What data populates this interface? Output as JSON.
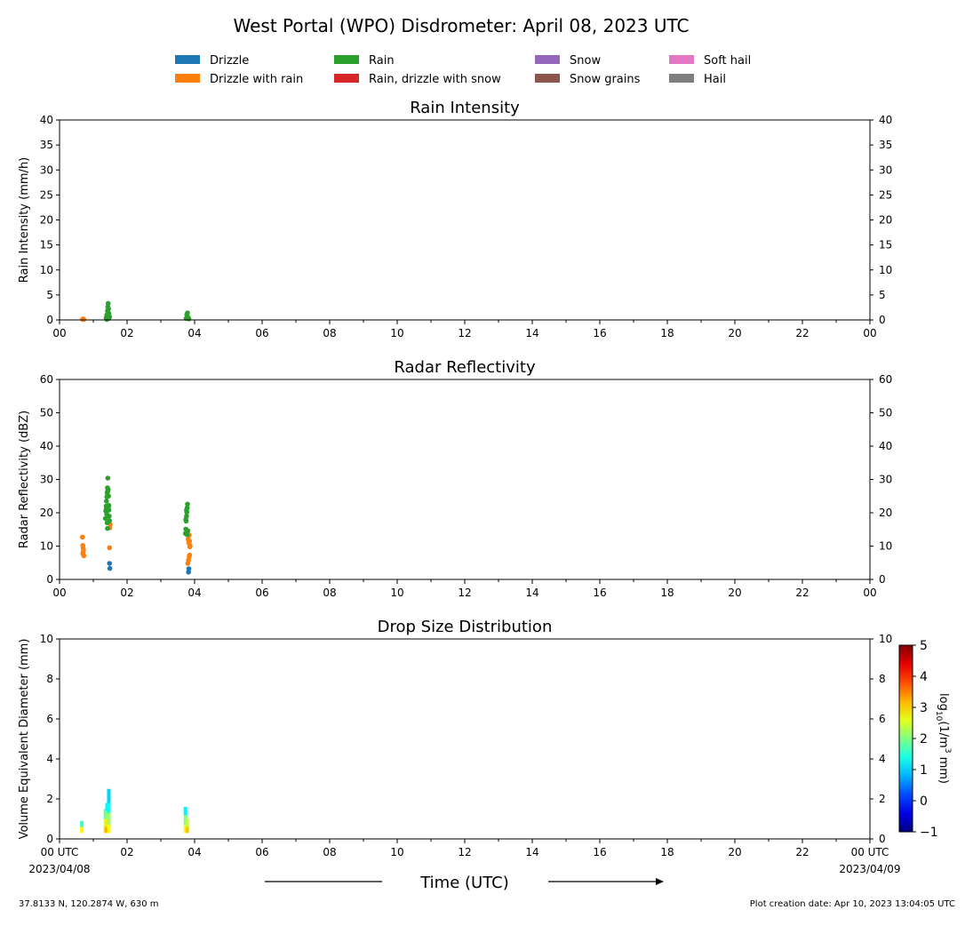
{
  "figure": {
    "title": "West Portal (WPO) Disdrometer: April 08, 2023 UTC",
    "xlabel": "Time (UTC)",
    "location": "37.8133 N, 120.2874 W, 630 m",
    "creation_date": "Plot creation date: Apr 10, 2023 13:04:05 UTC"
  },
  "legend": {
    "items": [
      {
        "label": "Drizzle",
        "color": "#1f77b4"
      },
      {
        "label": "Drizzle with rain",
        "color": "#ff7f0e"
      },
      {
        "label": "Rain",
        "color": "#2ca02c"
      },
      {
        "label": "Rain, drizzle with snow",
        "color": "#d62728"
      },
      {
        "label": "Snow",
        "color": "#9467bd"
      },
      {
        "label": "Snow grains",
        "color": "#8c564b"
      },
      {
        "label": "Soft hail",
        "color": "#e377c2"
      },
      {
        "label": "Hail",
        "color": "#7f7f7f"
      }
    ]
  },
  "colorbar": {
    "label_prefix": "log",
    "label_sub": "10",
    "label_mid": "(1/m",
    "label_sup": "3",
    "label_suffix": " mm)",
    "ticks": [
      "5",
      "4",
      "3",
      "2",
      "1",
      "0",
      "−1"
    ],
    "range": [
      -1,
      5
    ],
    "colormap": "jet"
  },
  "chart_data": [
    {
      "type": "scatter",
      "title": "Rain Intensity",
      "ylabel": "Rain Intensity (mm/h)",
      "xlim": [
        0,
        24
      ],
      "ylim": [
        0,
        40
      ],
      "yticks": [
        "0",
        "5",
        "10",
        "15",
        "20",
        "25",
        "30",
        "35",
        "40"
      ],
      "xticks": [
        "00",
        "02",
        "04",
        "06",
        "08",
        "10",
        "12",
        "14",
        "16",
        "18",
        "20",
        "22",
        "00"
      ],
      "grid": false,
      "series": [
        {
          "name": "Drizzle with rain",
          "color": "#ff7f0e",
          "x": [
            0.68,
            0.7,
            0.72
          ],
          "y": [
            0.1,
            0.2,
            0.1
          ]
        },
        {
          "name": "Rain",
          "color": "#2ca02c",
          "x": [
            1.38,
            1.4,
            1.42,
            1.43,
            1.44,
            1.45,
            1.46,
            1.48,
            1.42,
            1.44,
            1.46,
            1.4,
            3.75,
            3.77,
            3.79,
            3.81,
            3.83
          ],
          "y": [
            0.4,
            1.0,
            1.8,
            2.6,
            3.3,
            2.2,
            1.3,
            0.6,
            0.2,
            0.8,
            0.3,
            0.1,
            0.3,
            1.0,
            1.4,
            0.5,
            0.2
          ]
        }
      ]
    },
    {
      "type": "scatter",
      "title": "Radar Reflectivity",
      "ylabel": "Radar Reflectivity (dBZ)",
      "xlim": [
        0,
        24
      ],
      "ylim": [
        0,
        60
      ],
      "yticks": [
        "0",
        "10",
        "20",
        "30",
        "40",
        "50",
        "60"
      ],
      "xticks": [
        "00",
        "02",
        "04",
        "06",
        "08",
        "10",
        "12",
        "14",
        "16",
        "18",
        "20",
        "22",
        "00"
      ],
      "grid": false,
      "series": [
        {
          "name": "Drizzle",
          "color": "#1f77b4",
          "x": [
            1.48,
            1.49,
            3.82,
            3.83
          ],
          "y": [
            4.8,
            3.3,
            2.2,
            3.2
          ]
        },
        {
          "name": "Drizzle with rain",
          "color": "#ff7f0e",
          "x": [
            0.68,
            0.69,
            0.7,
            0.71,
            0.7,
            0.69,
            0.72,
            1.48,
            1.49,
            1.5,
            3.8,
            3.82,
            3.84,
            3.85,
            3.86,
            3.83,
            3.81,
            3.84,
            3.85,
            3.86
          ],
          "y": [
            12.7,
            10.2,
            9.5,
            8.8,
            8.2,
            7.7,
            7.1,
            9.5,
            15.5,
            16.5,
            4.8,
            5.8,
            6.8,
            7.3,
            10.2,
            11.0,
            12.0,
            13.3,
            11.5,
            9.8
          ]
        },
        {
          "name": "Rain",
          "color": "#2ca02c",
          "x": [
            1.36,
            1.37,
            1.38,
            1.39,
            1.4,
            1.41,
            1.42,
            1.43,
            1.44,
            1.45,
            1.46,
            1.47,
            1.48,
            1.38,
            1.4,
            1.42,
            1.44,
            1.46,
            1.41,
            1.43,
            3.73,
            3.74,
            3.75,
            3.76,
            3.77,
            3.78,
            3.79,
            3.8,
            3.74,
            3.76,
            3.78
          ],
          "y": [
            18.3,
            20.5,
            22.0,
            23.5,
            24.8,
            26.0,
            27.5,
            30.4,
            27.0,
            25.0,
            22.2,
            19.0,
            17.6,
            21.0,
            19.5,
            15.3,
            21.5,
            20.8,
            17.0,
            26.5,
            13.8,
            15.1,
            17.5,
            19.0,
            20.2,
            21.5,
            22.6,
            14.6,
            18.0,
            20.8,
            13.4
          ]
        }
      ]
    },
    {
      "type": "heatmap",
      "title": "Drop Size Distribution",
      "ylabel": "Volume Equivalent Diameter (mm)",
      "xlim": [
        0,
        24
      ],
      "ylim": [
        0,
        10
      ],
      "yticks": [
        "0",
        "2",
        "4",
        "6",
        "8",
        "10"
      ],
      "xticks": [
        "00 UTC",
        "02",
        "04",
        "06",
        "08",
        "10",
        "12",
        "14",
        "16",
        "18",
        "20",
        "22",
        "00 UTC"
      ],
      "x_dates": [
        "2023/04/08",
        "2023/04/09"
      ],
      "grid": false,
      "cells": [
        {
          "x": 0.66,
          "y0": 0.3,
          "y1": 0.6,
          "v": 2.8
        },
        {
          "x": 0.66,
          "y0": 0.6,
          "y1": 0.9,
          "v": 1.6
        },
        {
          "x": 1.36,
          "y0": 0.3,
          "y1": 0.6,
          "v": 3.0
        },
        {
          "x": 1.36,
          "y0": 0.6,
          "y1": 1.0,
          "v": 2.6
        },
        {
          "x": 1.36,
          "y0": 1.0,
          "y1": 1.5,
          "v": 1.8
        },
        {
          "x": 1.41,
          "y0": 0.3,
          "y1": 0.6,
          "v": 3.3
        },
        {
          "x": 1.41,
          "y0": 0.6,
          "y1": 1.0,
          "v": 2.9
        },
        {
          "x": 1.41,
          "y0": 1.0,
          "y1": 1.4,
          "v": 2.0
        },
        {
          "x": 1.41,
          "y0": 1.4,
          "y1": 1.8,
          "v": 1.2
        },
        {
          "x": 1.46,
          "y0": 0.3,
          "y1": 0.7,
          "v": 2.7
        },
        {
          "x": 1.46,
          "y0": 0.7,
          "y1": 1.3,
          "v": 2.2
        },
        {
          "x": 1.46,
          "y0": 1.3,
          "y1": 1.8,
          "v": 1.3
        },
        {
          "x": 1.46,
          "y0": 1.8,
          "y1": 2.5,
          "v": 1.0
        },
        {
          "x": 3.73,
          "y0": 0.3,
          "y1": 0.7,
          "v": 2.7
        },
        {
          "x": 3.73,
          "y0": 0.7,
          "y1": 1.2,
          "v": 2.0
        },
        {
          "x": 3.73,
          "y0": 1.2,
          "y1": 1.6,
          "v": 1.2
        },
        {
          "x": 3.78,
          "y0": 0.3,
          "y1": 0.6,
          "v": 3.1
        },
        {
          "x": 3.78,
          "y0": 0.6,
          "y1": 1.0,
          "v": 2.4
        }
      ]
    }
  ]
}
